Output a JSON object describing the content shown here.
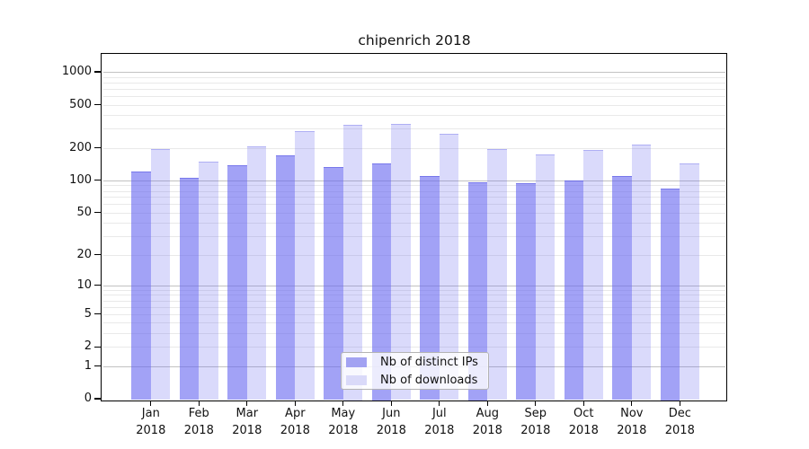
{
  "title": "chipenrich 2018",
  "colors": {
    "bar_ips": "rgba(100,100,240,0.60)",
    "bar_ips_edge": "rgba(85,85,225,0.55)",
    "bar_downloads": "rgba(100,100,240,0.24)",
    "bar_downloads_edge": "rgba(110,110,235,0.40)",
    "legend_swatch_ips": "#a2a2f2",
    "legend_swatch_downloads": "#dadaf9",
    "grid_major": "#c2c2c2",
    "grid_minor": "#e9e9e9",
    "frame": "#000000",
    "text": "#111111"
  },
  "legend": {
    "items": [
      {
        "label": "Nb of distinct IPs"
      },
      {
        "label": "Nb of downloads"
      }
    ]
  },
  "chart_data": {
    "type": "bar",
    "title": "chipenrich 2018",
    "categories": [
      "Jan",
      "Feb",
      "Mar",
      "Apr",
      "May",
      "Jun",
      "Jul",
      "Aug",
      "Sep",
      "Oct",
      "Nov",
      "Dec"
    ],
    "category_year": "2018",
    "series": [
      {
        "name": "Nb of distinct IPs",
        "values": [
          121,
          106,
          138,
          170,
          132,
          145,
          109,
          97,
          95,
          99,
          110,
          84
        ]
      },
      {
        "name": "Nb of downloads",
        "values": [
          194,
          150,
          205,
          287,
          329,
          330,
          268,
          196,
          175,
          192,
          214,
          144
        ]
      }
    ],
    "xlabel": "",
    "ylabel": "",
    "y_scale": "log10(1+x)",
    "y_ticks": [
      0,
      1,
      2,
      5,
      10,
      20,
      50,
      100,
      200,
      500,
      1000
    ],
    "ylim": [
      0,
      1464
    ],
    "grid": true,
    "legend_position": "inside-bottom-center"
  }
}
